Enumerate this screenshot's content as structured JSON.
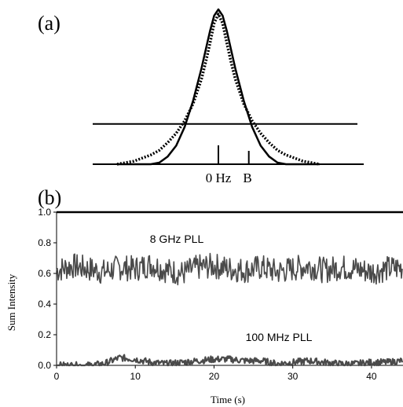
{
  "panel_a": {
    "label": "(a)",
    "marker_labels": [
      "0 Hz",
      "B"
    ]
  },
  "panel_b": {
    "label": "(b)"
  },
  "chart_data": [
    {
      "type": "line",
      "panel": "a",
      "description_free": true,
      "x": [
        -6,
        -5.5,
        -5,
        -4.5,
        -4,
        -3.5,
        -3,
        -2.5,
        -2,
        -1.5,
        -1,
        -0.75,
        -0.5,
        -0.25,
        0,
        0.25,
        0.5,
        0.75,
        1,
        1.5,
        2,
        2.5,
        3,
        3.5,
        4,
        4.5,
        5,
        5.5,
        6
      ],
      "series": [
        {
          "style": "solid",
          "values": [
            0.0,
            0.0,
            0.0,
            0.0,
            0.0,
            0.01,
            0.05,
            0.12,
            0.24,
            0.41,
            0.62,
            0.74,
            0.86,
            0.96,
            1.0,
            0.96,
            0.86,
            0.74,
            0.62,
            0.41,
            0.24,
            0.12,
            0.05,
            0.01,
            0.0,
            0.0,
            0.0,
            0.0,
            0.0
          ]
        },
        {
          "style": "dotted",
          "values": [
            0.0,
            0.01,
            0.02,
            0.04,
            0.06,
            0.09,
            0.14,
            0.2,
            0.28,
            0.39,
            0.55,
            0.66,
            0.78,
            0.91,
            0.97,
            0.91,
            0.78,
            0.66,
            0.55,
            0.39,
            0.28,
            0.2,
            0.14,
            0.09,
            0.06,
            0.04,
            0.02,
            0.01,
            0.0
          ]
        }
      ],
      "reference_level": 0.26,
      "markers": [
        {
          "label": "0 Hz",
          "x": 0
        },
        {
          "label": "B",
          "x": 1.8
        }
      ]
    },
    {
      "type": "line",
      "panel": "b",
      "xlabel": "Time (s)",
      "ylabel": "Sum Intensity",
      "xlim": [
        0,
        44
      ],
      "ylim": [
        0,
        1.0
      ],
      "xticks": [
        0,
        10,
        20,
        30,
        40
      ],
      "yticks": [
        0.0,
        0.2,
        0.4,
        0.6,
        0.8,
        1.0
      ],
      "series": [
        {
          "name": "8 GHz PLL",
          "mean": 0.63,
          "x": [
            0,
            2,
            4,
            6,
            8,
            10,
            12,
            14,
            16,
            18,
            20,
            22,
            24,
            26,
            28,
            30,
            32,
            34,
            36,
            38,
            40,
            42,
            44
          ],
          "values": [
            0.62,
            0.65,
            0.63,
            0.61,
            0.64,
            0.63,
            0.66,
            0.62,
            0.6,
            0.64,
            0.65,
            0.63,
            0.62,
            0.64,
            0.61,
            0.63,
            0.65,
            0.62,
            0.64,
            0.63,
            0.61,
            0.63,
            0.64
          ]
        },
        {
          "name": "100 MHz PLL",
          "mean": 0.02,
          "x": [
            0,
            2,
            4,
            6,
            8,
            10,
            12,
            14,
            16,
            18,
            20,
            22,
            24,
            26,
            28,
            30,
            32,
            34,
            36,
            38,
            40,
            42,
            44
          ],
          "values": [
            0.0,
            0.0,
            0.0,
            0.01,
            0.05,
            0.04,
            0.02,
            0.01,
            0.02,
            0.03,
            0.04,
            0.04,
            0.03,
            0.03,
            0.01,
            0.02,
            0.03,
            0.02,
            0.01,
            0.01,
            0.02,
            0.02,
            0.03
          ]
        }
      ]
    }
  ]
}
